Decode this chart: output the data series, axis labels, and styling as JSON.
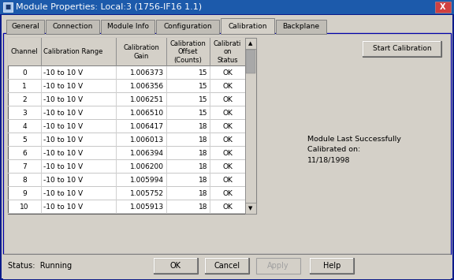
{
  "title": "Module Properties: Local:3 (1756-IF16 1.1)",
  "tabs": [
    "General",
    "Connection",
    "Module Info",
    "Configuration",
    "Calibration",
    "Backplane"
  ],
  "active_tab": "Calibration",
  "columns": [
    "Channel",
    "Calibration Range",
    "Calibration\nGain",
    "Calibration\nOffset\n(Counts)",
    "Calibrati\non\nStatus"
  ],
  "rows": [
    [
      "0",
      "-10 to 10 V",
      "1.006373",
      "15",
      "OK"
    ],
    [
      "1",
      "-10 to 10 V",
      "1.006356",
      "15",
      "OK"
    ],
    [
      "2",
      "-10 to 10 V",
      "1.006251",
      "15",
      "OK"
    ],
    [
      "3",
      "-10 to 10 V",
      "1.006510",
      "15",
      "OK"
    ],
    [
      "4",
      "-10 to 10 V",
      "1.006417",
      "18",
      "OK"
    ],
    [
      "5",
      "-10 to 10 V",
      "1.006013",
      "18",
      "OK"
    ],
    [
      "6",
      "-10 to 10 V",
      "1.006394",
      "18",
      "OK"
    ],
    [
      "7",
      "-10 to 10 V",
      "1.006200",
      "18",
      "OK"
    ],
    [
      "8",
      "-10 to 10 V",
      "1.005994",
      "18",
      "OK"
    ],
    [
      "9",
      "-10 to 10 V",
      "1.005752",
      "18",
      "OK"
    ],
    [
      "10",
      "-10 to 10 V",
      "1.005913",
      "18",
      "OK"
    ]
  ],
  "status_text": "Status:  Running",
  "calibration_note": "Module Last Successfully\nCalibrated on:\n11/18/1998",
  "buttons": [
    "OK",
    "Cancel",
    "Apply",
    "Help"
  ],
  "start_button": "Start Calibration",
  "bg_color": "#d4d0c8",
  "title_bar_color": "#1c5aab",
  "title_text_color": "#ffffff",
  "table_bg": "#ffffff",
  "active_tab_color": "#d4d0c8",
  "inactive_tab_color": "#c0bdb6",
  "font_size": 6.5,
  "title_font_size": 8.0
}
